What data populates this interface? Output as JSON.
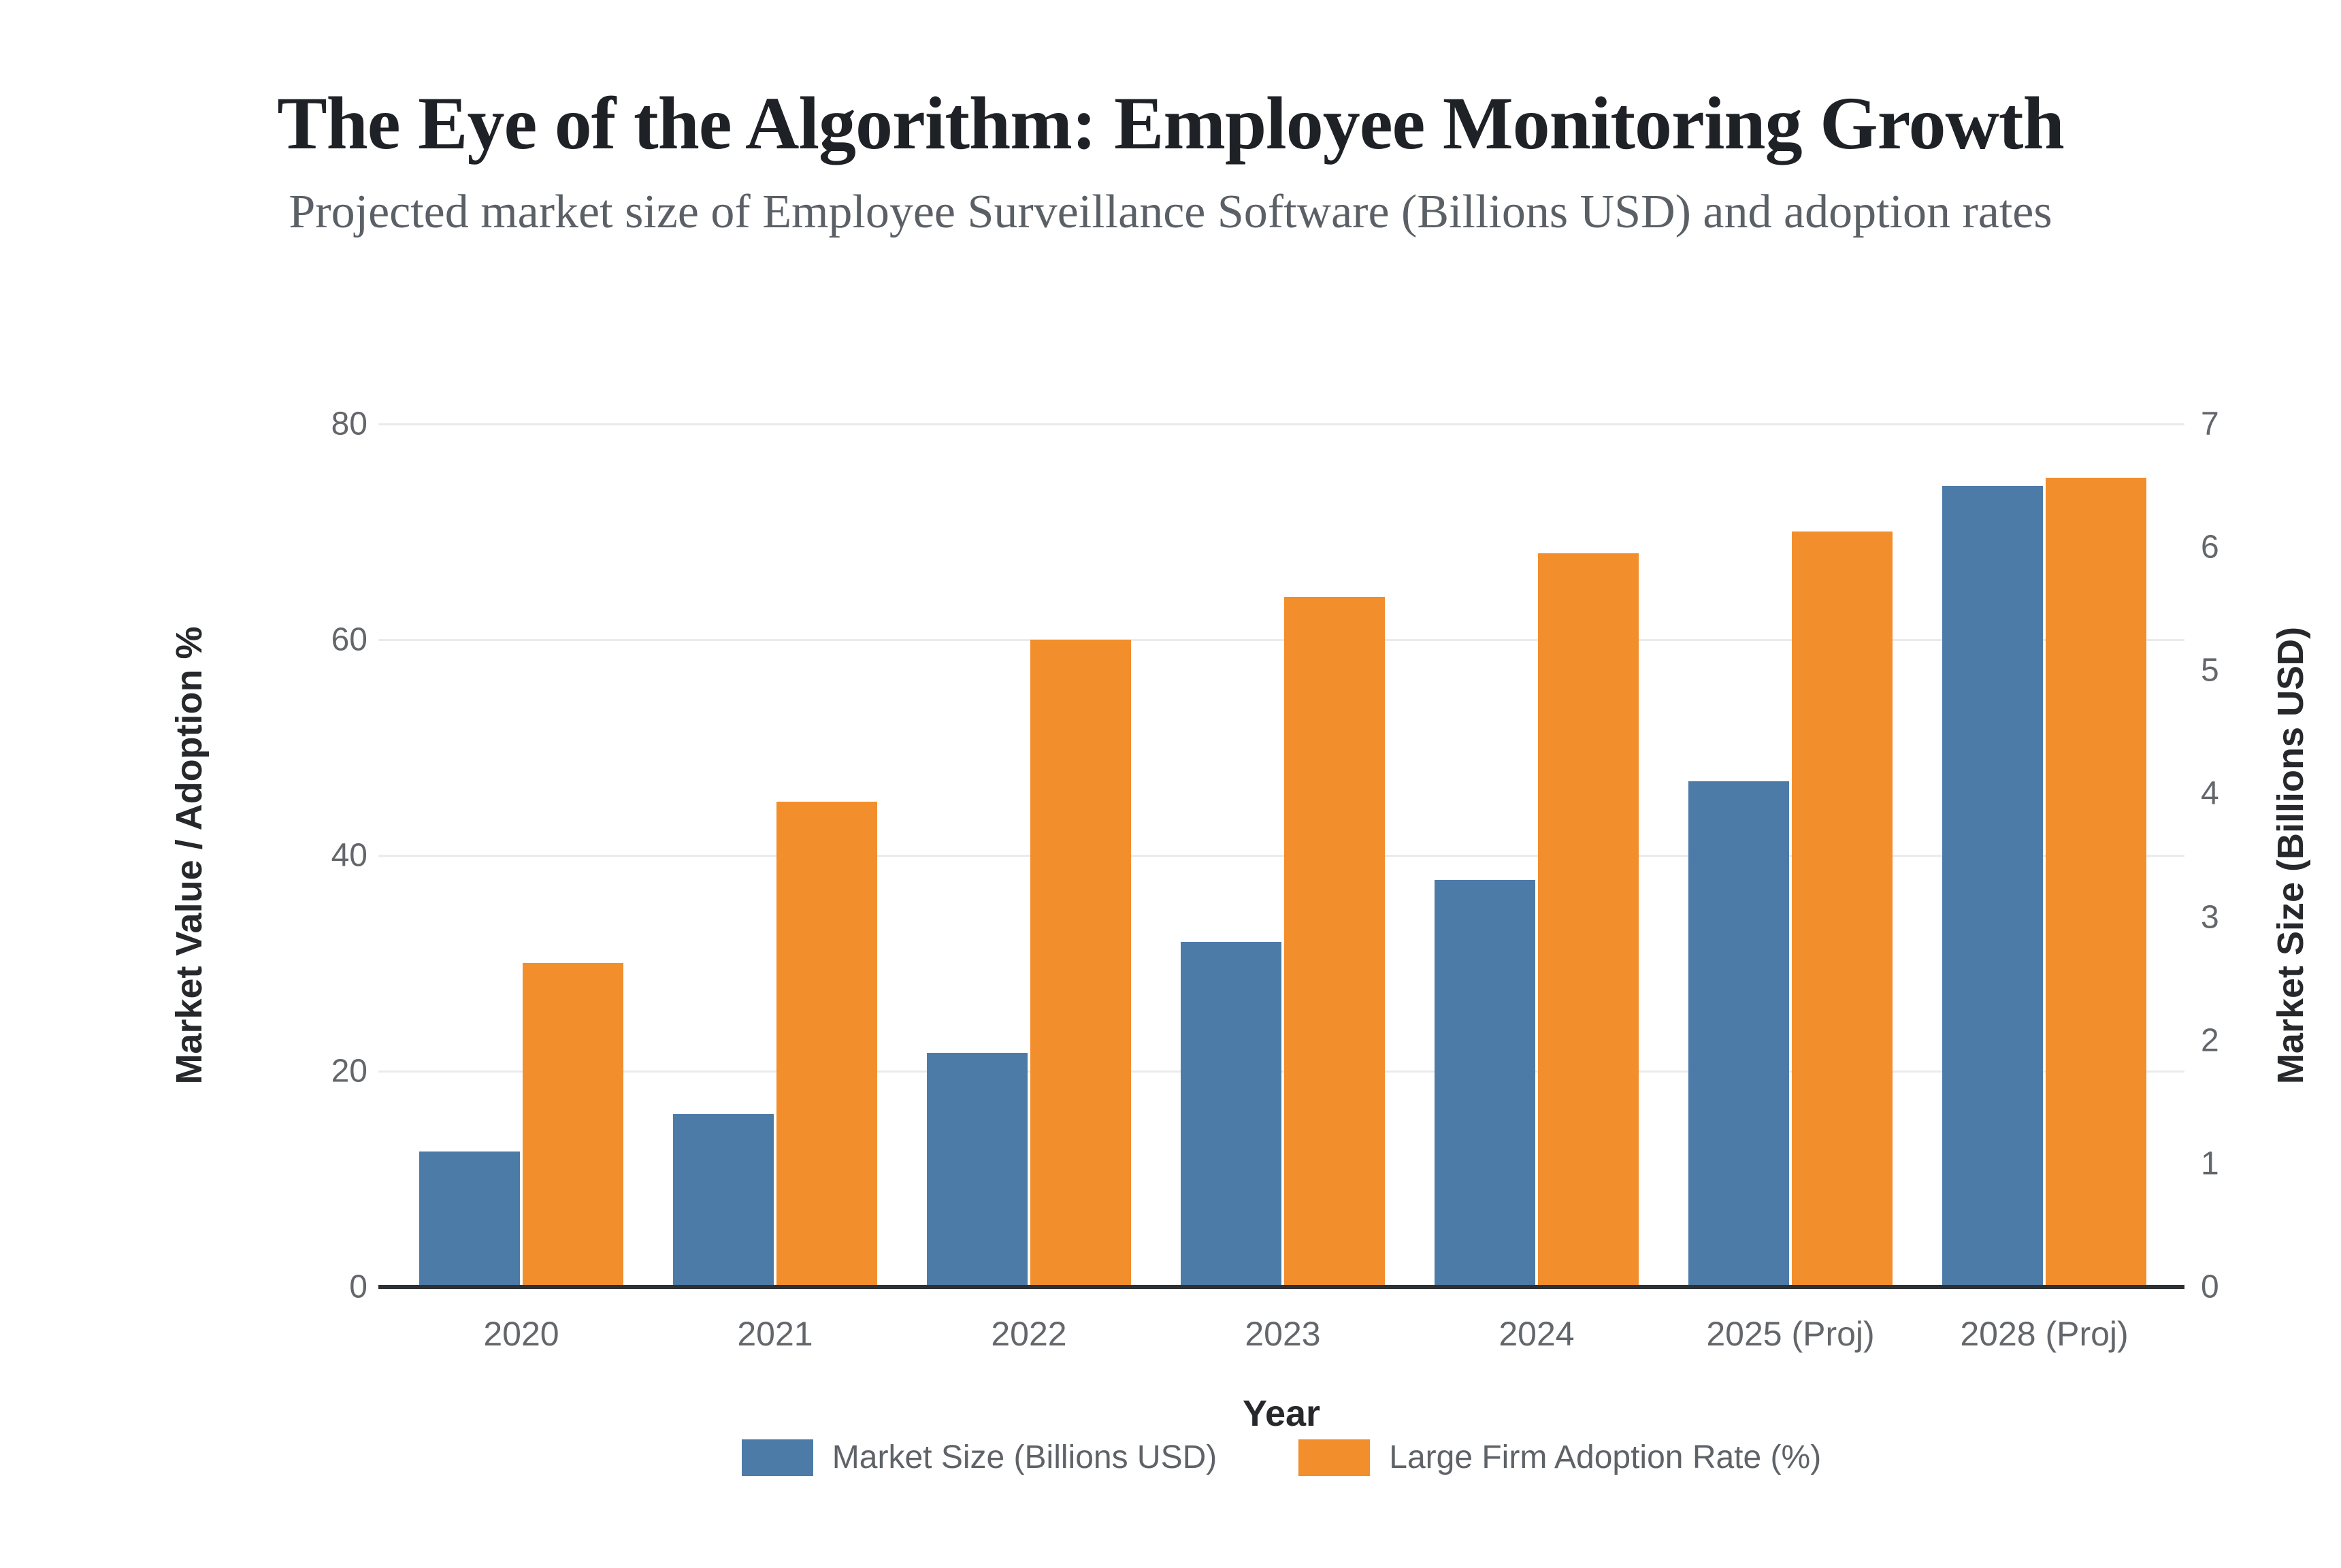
{
  "page": {
    "background": "#ffffff"
  },
  "chart_data": {
    "type": "bar",
    "title": "The Eye of the Algorithm: Employee Monitoring Growth",
    "subtitle": "Projected market size of Employee Surveillance Software (Billions USD) and adoption rates",
    "xlabel": "Year",
    "ylabel_left": "Market Value / Adoption %",
    "ylabel_right": "Market Size (Billions USD)",
    "categories": [
      "2020",
      "2021",
      "2022",
      "2023",
      "2024",
      "2025 (Proj)",
      "2028 (Proj)"
    ],
    "series": [
      {
        "name": "Market Size (Billions USD)",
        "axis": "right",
        "color": "#4d7ba8",
        "values": [
          1.1,
          1.4,
          1.9,
          2.8,
          3.3,
          4.1,
          6.5
        ]
      },
      {
        "name": "Large Firm Adoption Rate (%)",
        "axis": "left",
        "color": "#f28e2c",
        "values": [
          30,
          45,
          60,
          64,
          68,
          70,
          75
        ]
      }
    ],
    "left_axis": {
      "min": 0,
      "max": 80,
      "ticks": [
        0,
        20,
        40,
        60,
        80
      ]
    },
    "right_axis": {
      "min": 0,
      "max": 7,
      "ticks": [
        0,
        1,
        2,
        3,
        4,
        5,
        6,
        7
      ]
    },
    "legend_position": "bottom",
    "grid": "horizontal",
    "gridline_color": "#e9ebee",
    "axis_line_color": "#2e3134",
    "tick_label_color": "#63666a"
  }
}
